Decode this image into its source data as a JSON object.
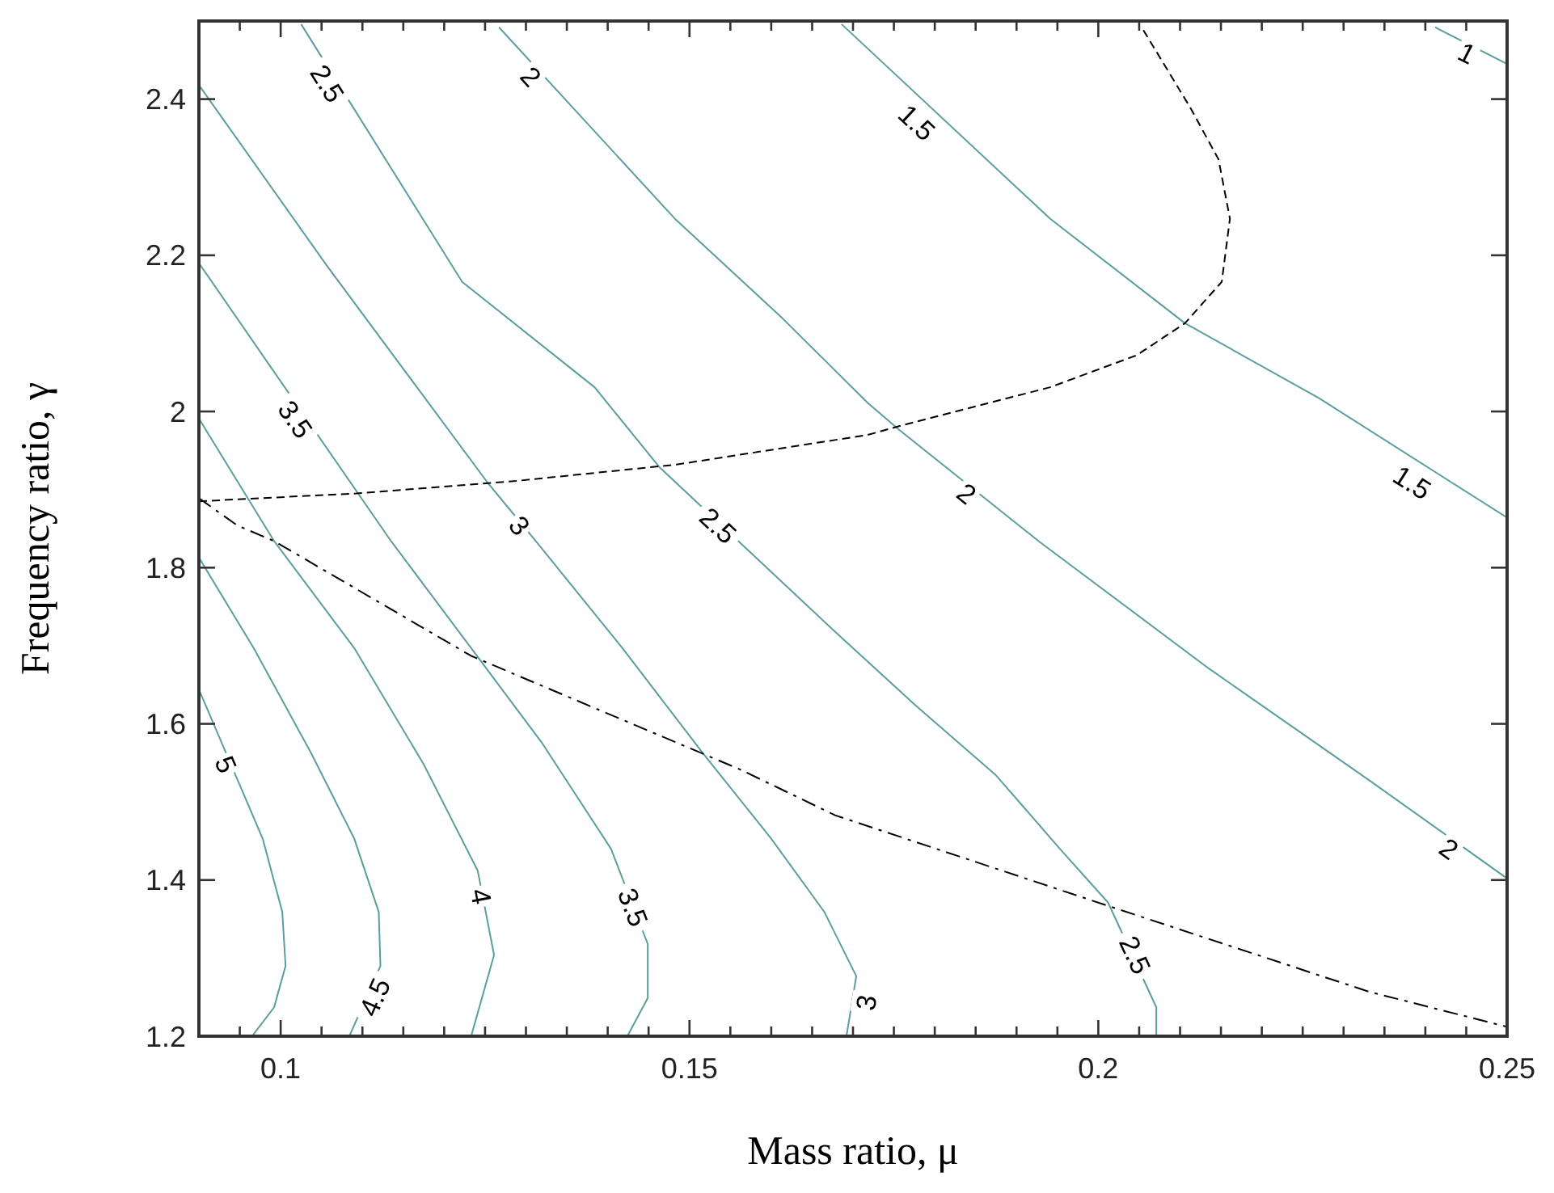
{
  "chart_data": {
    "type": "line",
    "xlabel": "Mass ratio, μ",
    "ylabel": "Frequency ratio, γ",
    "xlim": [
      0.09,
      0.25
    ],
    "ylim": [
      1.2,
      2.5
    ],
    "xticks": [
      {
        "value": 0.095,
        "label": null
      },
      0.1,
      {
        "value": 0.105,
        "label": null
      },
      {
        "value": 0.11,
        "label": null
      },
      {
        "value": 0.115,
        "label": null
      },
      {
        "value": 0.12,
        "label": null
      },
      {
        "value": 0.125,
        "label": null
      },
      {
        "value": 0.13,
        "label": null
      },
      {
        "value": 0.135,
        "label": null
      },
      {
        "value": 0.14,
        "label": null
      },
      {
        "value": 0.145,
        "label": null
      },
      0.15,
      {
        "value": 0.155,
        "label": null
      },
      {
        "value": 0.16,
        "label": null
      },
      {
        "value": 0.165,
        "label": null
      },
      {
        "value": 0.17,
        "label": null
      },
      {
        "value": 0.175,
        "label": null
      },
      {
        "value": 0.18,
        "label": null
      },
      {
        "value": 0.185,
        "label": null
      },
      {
        "value": 0.19,
        "label": null
      },
      {
        "value": 0.195,
        "label": null
      },
      0.2,
      {
        "value": 0.205,
        "label": null
      },
      {
        "value": 0.21,
        "label": null
      },
      {
        "value": 0.215,
        "label": null
      },
      {
        "value": 0.22,
        "label": null
      },
      {
        "value": 0.225,
        "label": null
      },
      {
        "value": 0.23,
        "label": null
      },
      {
        "value": 0.235,
        "label": null
      },
      {
        "value": 0.24,
        "label": null
      },
      {
        "value": 0.245,
        "label": null
      },
      0.25
    ],
    "yticks": [
      1.2,
      1.4,
      1.6,
      1.8,
      2,
      2.2,
      2.4
    ],
    "grid": false,
    "series": [
      {
        "color": "#5a9ea0",
        "line_style": "solid",
        "x": [
          0.09,
          0.0978,
          0.1002,
          0.1006,
          0.0992,
          0.0965
        ],
        "values": [
          1.644,
          1.453,
          1.359,
          1.29,
          1.237,
          1.2
        ]
      },
      {
        "color": "#5a9ea0",
        "line_style": "solid",
        "x": [
          0.09,
          0.0967,
          0.1037,
          0.109,
          0.112,
          0.1122,
          0.1084
        ],
        "values": [
          1.813,
          1.697,
          1.563,
          1.453,
          1.359,
          1.29,
          1.2
        ]
      },
      {
        "color": "#5a9ea0",
        "line_style": "solid",
        "x": [
          0.09,
          0.0992,
          0.109,
          0.1175,
          0.1241,
          0.1261,
          0.1233
        ],
        "values": [
          1.991,
          1.834,
          1.697,
          1.548,
          1.412,
          1.304,
          1.2
        ]
      },
      {
        "color": "#5a9ea0",
        "line_style": "solid",
        "x": [
          0.09,
          0.1135,
          0.1233,
          0.132,
          0.1404,
          0.1449,
          0.1449,
          0.1424
        ],
        "values": [
          2.19,
          1.834,
          1.697,
          1.575,
          1.44,
          1.318,
          1.249,
          1.2
        ]
      },
      {
        "color": "#5a9ea0",
        "line_style": "solid",
        "x": [
          0.09,
          0.1057,
          0.1253,
          0.1312,
          0.1418,
          0.1516,
          0.16,
          0.1665,
          0.1704,
          0.1692
        ],
        "values": [
          2.418,
          2.186,
          1.909,
          1.834,
          1.697,
          1.563,
          1.453,
          1.359,
          1.277,
          1.2
        ]
      },
      {
        "color": "#5a9ea0",
        "line_style": "solid",
        "x": [
          0.1025,
          0.1222,
          0.1384,
          0.1463,
          0.1678,
          0.1776,
          0.1875,
          0.1953,
          0.2012,
          0.2071,
          0.2071
        ],
        "values": [
          2.496,
          2.166,
          2.031,
          1.929,
          1.718,
          1.624,
          1.534,
          1.44,
          1.371,
          1.237,
          1.2
        ]
      },
      {
        "color": "#5a9ea0",
        "line_style": "solid",
        "x": [
          0.1267,
          0.1482,
          0.1614,
          0.1718,
          0.1757,
          0.1927,
          0.2135,
          0.2331,
          0.25
        ],
        "values": [
          2.492,
          2.247,
          2.119,
          2.011,
          1.976,
          1.834,
          1.671,
          1.528,
          1.402
        ]
      },
      {
        "color": "#5a9ea0",
        "line_style": "solid",
        "x": [
          0.1686,
          0.1941,
          0.2106,
          0.227,
          0.25
        ],
        "values": [
          2.496,
          2.247,
          2.113,
          2.017,
          1.864
        ]
      },
      {
        "color": "#5a9ea0",
        "line_style": "solid",
        "x": [
          0.2412,
          0.25
        ],
        "values": [
          2.492,
          2.445
        ]
      },
      {
        "color": "#000000",
        "line_style": "dashed",
        "x": [
          0.09,
          0.1092,
          0.1288,
          0.1484,
          0.1718,
          0.1759,
          0.1941,
          0.2047,
          0.2106,
          0.2151,
          0.2161,
          0.2147,
          0.2112,
          0.2053
        ],
        "values": [
          1.885,
          1.895,
          1.911,
          1.932,
          1.97,
          1.982,
          2.031,
          2.072,
          2.113,
          2.166,
          2.247,
          2.323,
          2.39,
          2.492
        ]
      },
      {
        "color": "#000000",
        "line_style": "dashdot",
        "x": [
          0.09,
          0.0947,
          0.0992,
          0.1233,
          0.1561,
          0.1678,
          0.2006,
          0.2331,
          0.25
        ],
        "values": [
          1.889,
          1.854,
          1.834,
          1.687,
          1.542,
          1.483,
          1.369,
          1.257,
          1.212
        ]
      }
    ],
    "annotations": [
      {
        "text": "5",
        "x": 0.0933,
        "y": 1.548
      },
      {
        "text": "4.5",
        "x": 0.1115,
        "y": 1.25
      },
      {
        "text": "4",
        "x": 0.1245,
        "y": 1.379
      },
      {
        "text": "3.5",
        "x": 0.1431,
        "y": 1.365
      },
      {
        "text": "3.5",
        "x": 0.1018,
        "y": 1.99
      },
      {
        "text": "3",
        "x": 0.1292,
        "y": 1.854
      },
      {
        "text": "3",
        "x": 0.1716,
        "y": 1.243
      },
      {
        "text": "2.5",
        "x": 0.1057,
        "y": 2.42
      },
      {
        "text": "2.5",
        "x": 0.1535,
        "y": 1.854
      },
      {
        "text": "2.5",
        "x": 0.2045,
        "y": 1.304
      },
      {
        "text": "2",
        "x": 0.1306,
        "y": 2.429
      },
      {
        "text": "2",
        "x": 0.1839,
        "y": 1.895
      },
      {
        "text": "2",
        "x": 0.2429,
        "y": 1.44
      },
      {
        "text": "1.5",
        "x": 0.1778,
        "y": 2.37
      },
      {
        "text": "1.5",
        "x": 0.2384,
        "y": 1.909
      },
      {
        "text": "1",
        "x": 0.2451,
        "y": 2.459
      }
    ]
  }
}
